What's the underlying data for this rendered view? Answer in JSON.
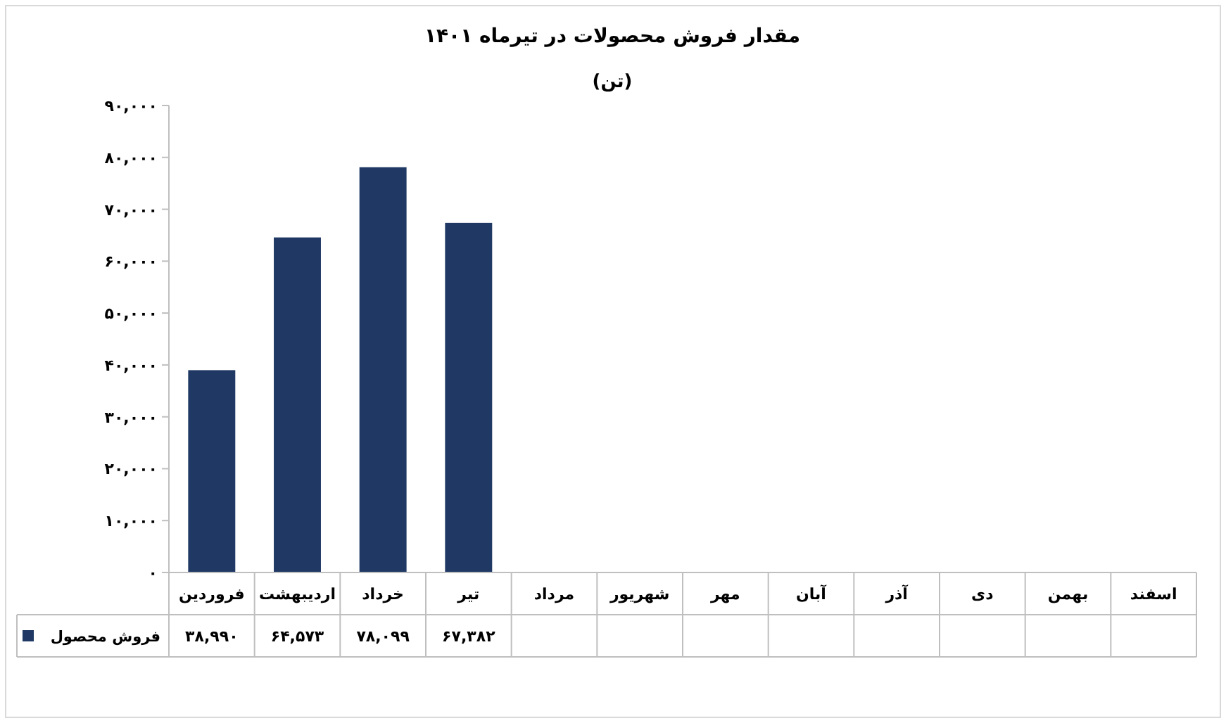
{
  "chart_data": {
    "type": "bar",
    "title": "مقدار فروش محصولات در تیرماه ۱۴۰۱",
    "subtitle": "(تن)",
    "categories": [
      "فروردین",
      "اردیبهشت",
      "خرداد",
      "تیر",
      "مرداد",
      "شهریور",
      "مهر",
      "آبان",
      "آذر",
      "دی",
      "بهمن",
      "اسفند"
    ],
    "series": [
      {
        "name": "فروش محصول",
        "color": "#1f3864",
        "values": [
          38990,
          64573,
          78099,
          67382,
          null,
          null,
          null,
          null,
          null,
          null,
          null,
          null
        ],
        "value_labels": [
          "۳۸,۹۹۰",
          "۶۴,۵۷۳",
          "۷۸,۰۹۹",
          "۶۷,۳۸۲",
          null,
          null,
          null,
          null,
          null,
          null,
          null,
          null
        ]
      }
    ],
    "ylim": [
      0,
      90000
    ],
    "yticks": [
      {
        "value": 0,
        "label": "۰"
      },
      {
        "value": 10000,
        "label": "۱۰,۰۰۰"
      },
      {
        "value": 20000,
        "label": "۲۰,۰۰۰"
      },
      {
        "value": 30000,
        "label": "۳۰,۰۰۰"
      },
      {
        "value": 40000,
        "label": "۴۰,۰۰۰"
      },
      {
        "value": 50000,
        "label": "۵۰,۰۰۰"
      },
      {
        "value": 60000,
        "label": "۶۰,۰۰۰"
      },
      {
        "value": 70000,
        "label": "۷۰,۰۰۰"
      },
      {
        "value": 80000,
        "label": "۸۰,۰۰۰"
      },
      {
        "value": 90000,
        "label": "۹۰,۰۰۰"
      }
    ]
  }
}
